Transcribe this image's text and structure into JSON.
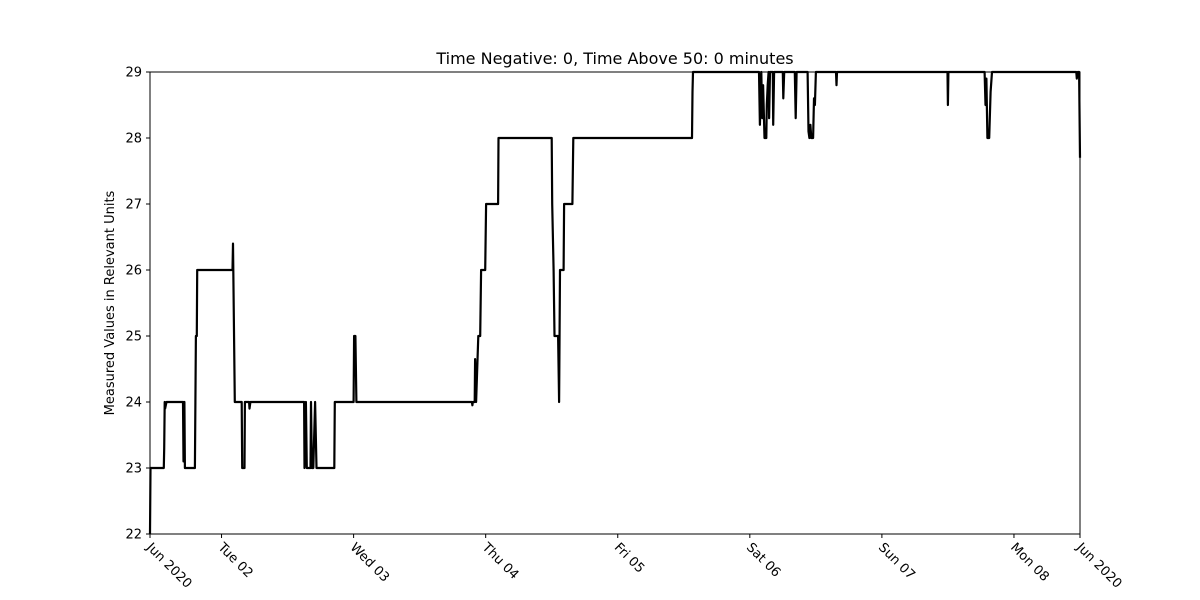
{
  "chart_data": {
    "type": "line",
    "title": "Time Negative: 0, Time Above 50: 0 minutes",
    "xlabel": "",
    "ylabel": "Measured Values in Relevant Units",
    "xlim": [
      "2020-06-01 11:00",
      "2020-06-08 12:00"
    ],
    "ylim": [
      22,
      29
    ],
    "grid": false,
    "legend": "none",
    "colors": {
      "line": "#000000",
      "axes": "#000000",
      "background": "#ffffff"
    },
    "yticks": [
      22,
      23,
      24,
      25,
      26,
      27,
      28,
      29
    ],
    "xticks": [
      {
        "x": "2020-06-01 11:00",
        "label": "Jun 2020"
      },
      {
        "x": "2020-06-02 00:00",
        "label": "Tue 02"
      },
      {
        "x": "2020-06-03 00:00",
        "label": "Wed 03"
      },
      {
        "x": "2020-06-04 00:00",
        "label": "Thu 04"
      },
      {
        "x": "2020-06-05 00:00",
        "label": "Fri 05"
      },
      {
        "x": "2020-06-06 00:00",
        "label": "Sat 06"
      },
      {
        "x": "2020-06-07 00:00",
        "label": "Sun 07"
      },
      {
        "x": "2020-06-08 00:00",
        "label": "Mon 08"
      },
      {
        "x": "2020-06-08 12:00",
        "label": "Jun 2020"
      }
    ],
    "series": [
      {
        "points": [
          [
            "2020-06-01 11:00",
            22.0
          ],
          [
            "2020-06-01 11:05",
            23.0
          ],
          [
            "2020-06-01 13:30",
            23.0
          ],
          [
            "2020-06-01 13:35",
            23.3
          ],
          [
            "2020-06-01 13:40",
            24.0
          ],
          [
            "2020-06-01 13:45",
            23.9
          ],
          [
            "2020-06-01 14:00",
            24.0
          ],
          [
            "2020-06-01 17:00",
            24.0
          ],
          [
            "2020-06-01 17:05",
            23.1
          ],
          [
            "2020-06-01 17:10",
            24.0
          ],
          [
            "2020-06-01 17:15",
            24.0
          ],
          [
            "2020-06-01 17:20",
            23.0
          ],
          [
            "2020-06-01 19:10",
            23.0
          ],
          [
            "2020-06-01 19:15",
            24.0
          ],
          [
            "2020-06-01 19:20",
            25.0
          ],
          [
            "2020-06-01 19:30",
            25.0
          ],
          [
            "2020-06-01 19:35",
            26.0
          ],
          [
            "2020-06-02 02:00",
            26.0
          ],
          [
            "2020-06-02 02:05",
            26.4
          ],
          [
            "2020-06-02 02:15",
            25.2
          ],
          [
            "2020-06-02 02:25",
            24.0
          ],
          [
            "2020-06-02 03:40",
            24.0
          ],
          [
            "2020-06-02 03:45",
            23.0
          ],
          [
            "2020-06-02 04:10",
            23.0
          ],
          [
            "2020-06-02 04:15",
            24.0
          ],
          [
            "2020-06-02 05:00",
            24.0
          ],
          [
            "2020-06-02 05:05",
            23.9
          ],
          [
            "2020-06-02 05:15",
            24.0
          ],
          [
            "2020-06-02 15:00",
            24.0
          ],
          [
            "2020-06-02 15:05",
            23.0
          ],
          [
            "2020-06-02 15:20",
            24.0
          ],
          [
            "2020-06-02 15:30",
            23.0
          ],
          [
            "2020-06-02 16:10",
            23.0
          ],
          [
            "2020-06-02 16:15",
            24.0
          ],
          [
            "2020-06-02 16:25",
            23.0
          ],
          [
            "2020-06-02 16:40",
            23.0
          ],
          [
            "2020-06-02 17:00",
            24.0
          ],
          [
            "2020-06-02 17:15",
            23.0
          ],
          [
            "2020-06-02 20:30",
            23.0
          ],
          [
            "2020-06-02 20:35",
            24.0
          ],
          [
            "2020-06-03 00:00",
            24.0
          ],
          [
            "2020-06-03 00:05",
            25.0
          ],
          [
            "2020-06-03 00:20",
            25.0
          ],
          [
            "2020-06-03 00:30",
            24.0
          ],
          [
            "2020-06-03 21:30",
            24.0
          ],
          [
            "2020-06-03 21:35",
            23.95
          ],
          [
            "2020-06-03 21:40",
            24.0
          ],
          [
            "2020-06-03 22:00",
            24.0
          ],
          [
            "2020-06-03 22:05",
            24.65
          ],
          [
            "2020-06-03 22:15",
            24.0
          ],
          [
            "2020-06-03 22:40",
            25.0
          ],
          [
            "2020-06-03 23:00",
            25.0
          ],
          [
            "2020-06-03 23:10",
            26.0
          ],
          [
            "2020-06-03 23:55",
            26.0
          ],
          [
            "2020-06-04 00:05",
            27.0
          ],
          [
            "2020-06-04 02:15",
            27.0
          ],
          [
            "2020-06-04 02:20",
            28.0
          ],
          [
            "2020-06-04 12:00",
            28.0
          ],
          [
            "2020-06-04 12:05",
            27.0
          ],
          [
            "2020-06-04 12:20",
            26.0
          ],
          [
            "2020-06-04 12:30",
            25.0
          ],
          [
            "2020-06-04 13:10",
            25.0
          ],
          [
            "2020-06-04 13:20",
            24.0
          ],
          [
            "2020-06-04 13:30",
            26.0
          ],
          [
            "2020-06-04 14:10",
            26.0
          ],
          [
            "2020-06-04 14:15",
            27.0
          ],
          [
            "2020-06-04 15:45",
            27.0
          ],
          [
            "2020-06-04 15:55",
            28.0
          ],
          [
            "2020-06-05 13:30",
            28.0
          ],
          [
            "2020-06-05 13:35",
            28.7
          ],
          [
            "2020-06-05 13:40",
            29.0
          ],
          [
            "2020-06-06 01:40",
            29.0
          ],
          [
            "2020-06-06 01:50",
            28.2
          ],
          [
            "2020-06-06 02:05",
            29.0
          ],
          [
            "2020-06-06 02:15",
            28.3
          ],
          [
            "2020-06-06 02:25",
            28.8
          ],
          [
            "2020-06-06 02:40",
            28.0
          ],
          [
            "2020-06-06 03:00",
            28.0
          ],
          [
            "2020-06-06 03:05",
            28.5
          ],
          [
            "2020-06-06 03:15",
            28.8
          ],
          [
            "2020-06-06 03:25",
            29.0
          ],
          [
            "2020-06-06 03:30",
            28.3
          ],
          [
            "2020-06-06 03:40",
            29.0
          ],
          [
            "2020-06-06 04:10",
            29.0
          ],
          [
            "2020-06-06 04:15",
            28.2
          ],
          [
            "2020-06-06 04:25",
            29.0
          ],
          [
            "2020-06-06 06:00",
            29.0
          ],
          [
            "2020-06-06 06:05",
            28.6
          ],
          [
            "2020-06-06 06:15",
            29.0
          ],
          [
            "2020-06-06 08:10",
            29.0
          ],
          [
            "2020-06-06 08:20",
            28.3
          ],
          [
            "2020-06-06 08:30",
            29.0
          ],
          [
            "2020-06-06 10:30",
            29.0
          ],
          [
            "2020-06-06 10:40",
            28.1
          ],
          [
            "2020-06-06 10:50",
            28.0
          ],
          [
            "2020-06-06 11:00",
            28.2
          ],
          [
            "2020-06-06 11:10",
            28.0
          ],
          [
            "2020-06-06 11:30",
            28.0
          ],
          [
            "2020-06-06 11:40",
            28.6
          ],
          [
            "2020-06-06 11:50",
            28.5
          ],
          [
            "2020-06-06 12:00",
            29.0
          ],
          [
            "2020-06-06 15:40",
            29.0
          ],
          [
            "2020-06-06 15:45",
            28.8
          ],
          [
            "2020-06-06 15:50",
            29.0
          ],
          [
            "2020-06-07 11:55",
            29.0
          ],
          [
            "2020-06-07 12:00",
            28.5
          ],
          [
            "2020-06-07 12:05",
            29.0
          ],
          [
            "2020-06-07 18:40",
            29.0
          ],
          [
            "2020-06-07 18:50",
            28.5
          ],
          [
            "2020-06-07 19:00",
            28.9
          ],
          [
            "2020-06-07 19:10",
            28.0
          ],
          [
            "2020-06-07 19:30",
            28.0
          ],
          [
            "2020-06-07 19:45",
            28.7
          ],
          [
            "2020-06-07 20:00",
            29.0
          ],
          [
            "2020-06-08 11:20",
            29.0
          ],
          [
            "2020-06-08 11:25",
            28.9
          ],
          [
            "2020-06-08 11:35",
            29.0
          ],
          [
            "2020-06-08 11:50",
            29.0
          ],
          [
            "2020-06-08 12:00",
            27.7
          ]
        ]
      }
    ]
  }
}
